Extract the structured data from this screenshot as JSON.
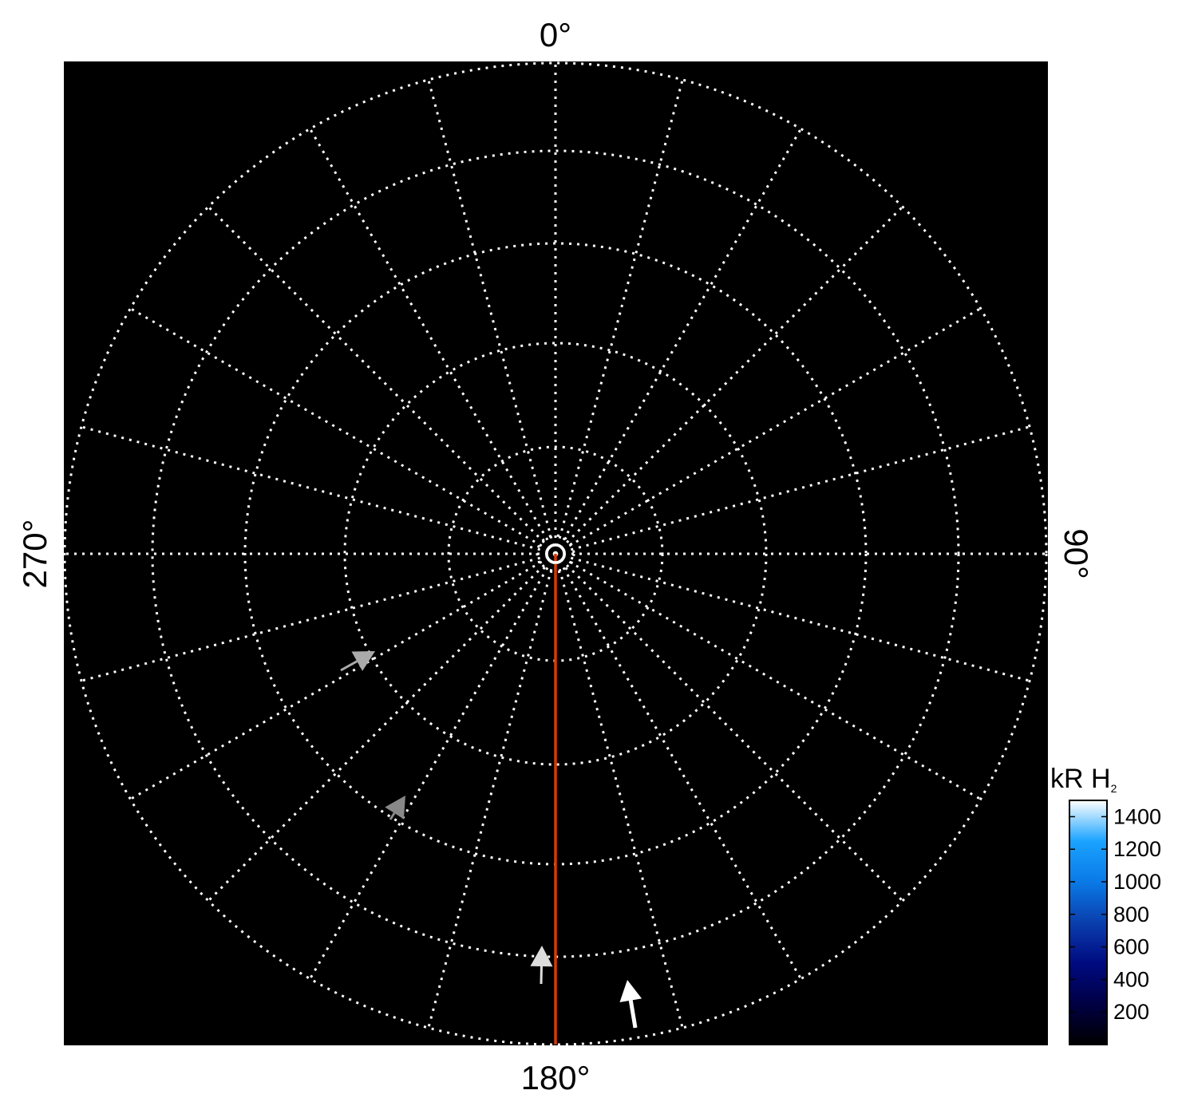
{
  "chart_data": {
    "type": "polar",
    "angle_labels": [
      {
        "angle": 0,
        "text": "0°"
      },
      {
        "angle": 90,
        "text": "90°"
      },
      {
        "angle": 180,
        "text": "180°"
      },
      {
        "angle": 270,
        "text": "270°"
      }
    ],
    "angular_grid_step_deg": 15,
    "grid": true,
    "grid_style": "dotted white",
    "background": "#000000",
    "reference_line": {
      "angle": 180,
      "color": "#d43a0a"
    },
    "arrows": [
      {
        "color": "#aaaaaa",
        "direction": "toward upper-right"
      },
      {
        "color": "#888888",
        "direction": "toward upper-right"
      },
      {
        "color": "#dddddd",
        "direction": "up"
      },
      {
        "color": "#ffffff",
        "direction": "up"
      }
    ],
    "colorbar": {
      "label": "kR H",
      "label_subscript": "2",
      "range": [
        0,
        1500
      ],
      "ticks": [
        200,
        400,
        600,
        800,
        1000,
        1200,
        1400
      ],
      "tick_labels": [
        "200",
        "400",
        "600",
        "800",
        "1000",
        "1200",
        "1400"
      ],
      "colormap": [
        "#000000",
        "#000044",
        "#000a80",
        "#0a3fae",
        "#0a7ae6",
        "#1aa3ff",
        "#ffffff"
      ],
      "placement": "bottom-right"
    }
  }
}
